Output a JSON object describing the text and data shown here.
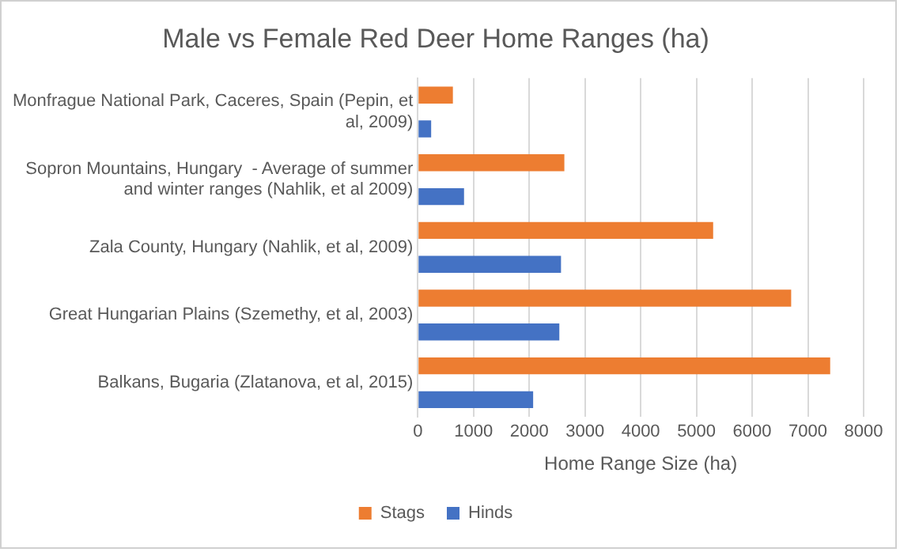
{
  "chart_data": {
    "type": "bar",
    "orientation": "horizontal",
    "title": "Male vs Female Red Deer Home Ranges (ha)",
    "xlabel": "Home Range Size (ha)",
    "categories": [
      "Monfrague National Park, Caceres, Spain (Pepin, et al, 2009)",
      "Sopron Mountains, Hungary  - Average of summer and winter ranges (Nahlik, et al 2009)",
      "Zala County, Hungary (Nahlik, et al, 2009)",
      "Great Hungarian Plains (Szemethy, et al, 2003)",
      "Balkans, Bugaria (Zlatanova, et al, 2015)"
    ],
    "series": [
      {
        "name": "Stags",
        "color": "#ed7d31",
        "values": [
          630,
          2630,
          5300,
          6700,
          7400
        ]
      },
      {
        "name": "Hinds",
        "color": "#4472c4",
        "values": [
          240,
          830,
          2570,
          2540,
          2070
        ]
      }
    ],
    "xlim": [
      0,
      8000
    ],
    "xticks": [
      0,
      1000,
      2000,
      3000,
      4000,
      5000,
      6000,
      7000,
      8000
    ],
    "grid": "x",
    "legend": "bottom"
  }
}
